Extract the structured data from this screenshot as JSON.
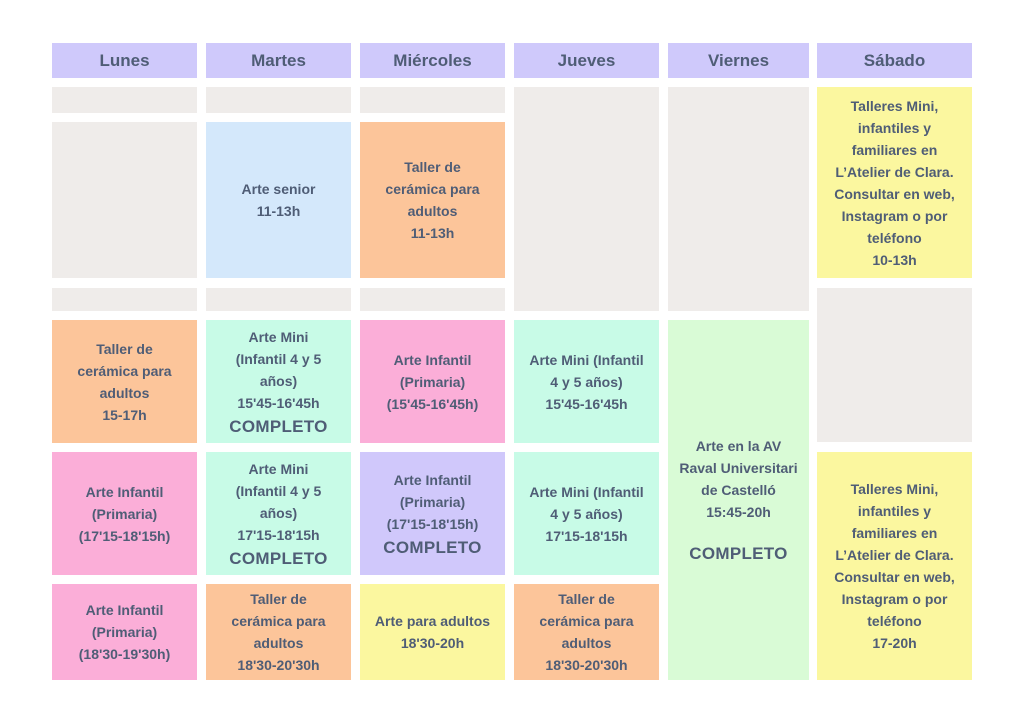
{
  "days": [
    "Lunes",
    "Martes",
    "Miércoles",
    "Jueves",
    "Viernes",
    "Sábado"
  ],
  "colors": {
    "header": "#cfc9fb",
    "blank": "#efecea",
    "text": "#4f5d76",
    "blue": "#d4e8fb",
    "orange": "#fcc59a",
    "mint": "#c8fbe7",
    "pink": "#fbaed8",
    "lavender": "#d0c8fb",
    "yellow": "#fbf79f",
    "green": "#d9fbd6"
  },
  "classes": {
    "martes_morning": {
      "lines": [
        "Arte senior",
        "11-13h"
      ]
    },
    "miercoles_morning": {
      "lines": [
        "Taller de",
        "cerámica para",
        "adultos",
        "11-13h"
      ]
    },
    "sabado_morning": {
      "lines": [
        "Talleres Mini,",
        "infantiles y",
        "familiares en",
        "L’Atelier de Clara.",
        "Consultar en web,",
        "Instagram o por",
        "teléfono",
        "10-13h"
      ]
    },
    "lunes_1": {
      "lines": [
        "Taller de",
        "cerámica para",
        "adultos",
        "15-17h"
      ]
    },
    "martes_1": {
      "lines": [
        "Arte Mini",
        "(Infantil 4 y 5",
        "años)",
        "15'45-16'45h"
      ],
      "status": "COMPLETO"
    },
    "miercoles_1": {
      "lines": [
        "Arte Infantil",
        "(Primaria)",
        "(15'45-16'45h)"
      ]
    },
    "jueves_1": {
      "lines": [
        "Arte Mini (Infantil",
        "4 y 5 años)",
        "15'45-16'45h"
      ]
    },
    "viernes_afternoon": {
      "lines": [
        "Arte en la AV",
        "Raval Universitari",
        "de Castelló",
        "15:45-20h"
      ],
      "status": "COMPLETO"
    },
    "lunes_2": {
      "lines": [
        "Arte Infantil",
        "(Primaria)",
        "(17'15-18'15h)"
      ]
    },
    "martes_2": {
      "lines": [
        "Arte Mini",
        "(Infantil 4 y 5",
        "años)",
        "17'15-18'15h"
      ],
      "status": "COMPLETO"
    },
    "miercoles_2": {
      "lines": [
        "Arte Infantil",
        "(Primaria)",
        "(17'15-18'15h)"
      ],
      "status": "COMPLETO"
    },
    "jueves_2": {
      "lines": [
        "Arte Mini (Infantil",
        "4 y 5 años)",
        "17'15-18'15h"
      ]
    },
    "sabado_afternoon": {
      "lines": [
        "Talleres Mini,",
        "infantiles y",
        "familiares en",
        "L’Atelier de Clara.",
        "Consultar en web,",
        "Instagram o por",
        "teléfono",
        "17-20h"
      ]
    },
    "lunes_3": {
      "lines": [
        "Arte Infantil",
        "(Primaria)",
        "(18'30-19'30h)"
      ]
    },
    "martes_3": {
      "lines": [
        "Taller de",
        "cerámica para",
        "adultos",
        "18'30-20'30h"
      ]
    },
    "miercoles_3": {
      "lines": [
        "Arte para adultos",
        "18'30-20h"
      ]
    },
    "jueves_3": {
      "lines": [
        "Taller de",
        "cerámica para",
        "adultos",
        "18'30-20'30h"
      ]
    }
  }
}
